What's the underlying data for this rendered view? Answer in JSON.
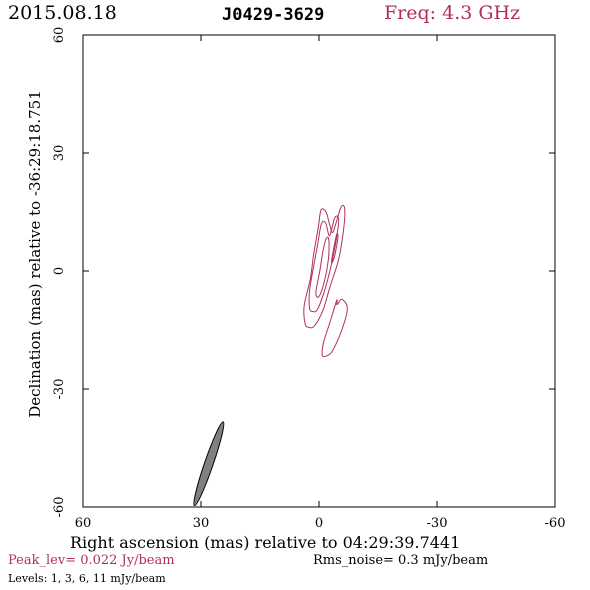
{
  "header": {
    "date": "2015.08.18",
    "source": "J0429-3629",
    "freq": "Freq: 4.3 GHz"
  },
  "chart_data": {
    "type": "contour",
    "xlabel": "Right ascension (mas) relative to 04:29:39.7441",
    "ylabel": "Declination (mas) relative to -36:29:18.751",
    "xlim": [
      60,
      -60
    ],
    "ylim": [
      -60,
      60
    ],
    "x_ticks": [
      60,
      30,
      0,
      -30,
      -60
    ],
    "y_ticks": [
      60,
      30,
      0,
      -30,
      -60
    ],
    "contour_color": "#b0305a",
    "beam_color": "#808080",
    "peak_text": "Peak_lev=  0.022 Jy/beam",
    "rms_text": "Rms_noise=   0.3 mJy/beam",
    "levels_text": "Levels:   1,    3,    6,   11 mJy/beam",
    "levels_mjy": [
      1,
      3,
      6,
      11
    ],
    "contours": [
      {
        "level": 1,
        "points": [
          [
            3.5,
            -13.5
          ],
          [
            3.8,
            -9
          ],
          [
            2.2,
            -2
          ],
          [
            1.4,
            4
          ],
          [
            0.2,
            11
          ],
          [
            -0.5,
            15.5
          ],
          [
            -1.8,
            15
          ],
          [
            -2.8,
            11.5
          ],
          [
            -3.6,
            10
          ],
          [
            -5.5,
            16
          ],
          [
            -6.5,
            16
          ],
          [
            -6.3,
            11
          ],
          [
            -5,
            3
          ],
          [
            -2.8,
            -4
          ],
          [
            -1,
            -10
          ],
          [
            1.2,
            -14
          ],
          [
            2.6,
            -14.3
          ]
        ]
      },
      {
        "level": 3,
        "points": [
          [
            2.4,
            -9.5
          ],
          [
            2.4,
            -5
          ],
          [
            1.4,
            1
          ],
          [
            0.3,
            7
          ],
          [
            -0.6,
            12
          ],
          [
            -1.7,
            12.2
          ],
          [
            -2.7,
            9
          ],
          [
            -4,
            13.5
          ],
          [
            -5,
            13.2
          ],
          [
            -4.4,
            8
          ],
          [
            -3,
            1
          ],
          [
            -1.4,
            -5
          ],
          [
            0.4,
            -9.8
          ],
          [
            1.6,
            -10.3
          ]
        ]
      },
      {
        "level": 6,
        "points": [
          [
            0.8,
            -5.5
          ],
          [
            -0.2,
            0
          ],
          [
            -1,
            5
          ],
          [
            -1.8,
            8.2
          ],
          [
            -2.5,
            8
          ],
          [
            -2.4,
            3
          ],
          [
            -1.4,
            -2.5
          ],
          [
            0,
            -6.5
          ]
        ]
      },
      {
        "level": 6,
        "points": [
          [
            -3.2,
            2.5
          ],
          [
            -4.4,
            9
          ],
          [
            -4.8,
            8.5
          ],
          [
            -3.9,
            3.5
          ]
        ]
      },
      {
        "level": 1,
        "points": [
          [
            -0.8,
            -21.2
          ],
          [
            -1.2,
            -18
          ],
          [
            -2.8,
            -13
          ],
          [
            -4.5,
            -7.5
          ],
          [
            -4.6,
            -8.6
          ],
          [
            -5.8,
            -7.2
          ],
          [
            -7.2,
            -9.5
          ],
          [
            -5.8,
            -15
          ],
          [
            -3.3,
            -20.5
          ],
          [
            -1.5,
            -21.7
          ]
        ]
      }
    ],
    "beam": {
      "x": 28,
      "y": -49,
      "major_mas": 22.5,
      "minor_mas": 2.2,
      "pa_deg": 19
    }
  }
}
